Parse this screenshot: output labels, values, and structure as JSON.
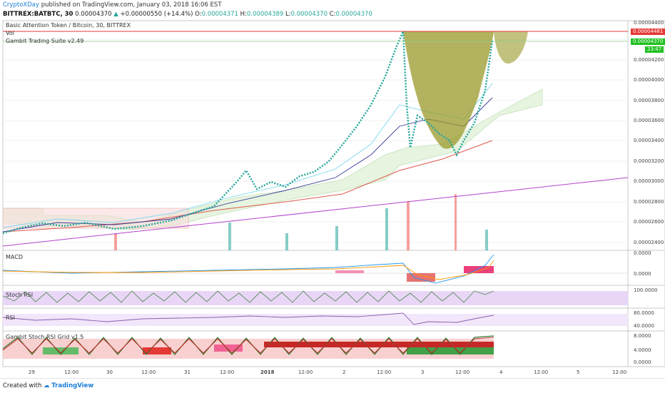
{
  "header": {
    "author": "CryptoXDay",
    "published_text": "published on TradingView.com, January 03, 2018 16:06 EST",
    "symbol": "BITTREX:BATBTC, 30",
    "last": "0.00004370",
    "change_arrow": "▲",
    "change": "+0.00000550 (+14.4%)",
    "ohlc": [
      {
        "key": "O:",
        "value": "0.00004371"
      },
      {
        "key": "H:",
        "value": "0.00004389"
      },
      {
        "key": "L:",
        "value": "0.00004370"
      },
      {
        "key": "C:",
        "value": "0.00004370"
      }
    ]
  },
  "main_pane": {
    "title": "Basic Attention Token / Bitcoin, 30, BITTREX",
    "vol_label": "Vol",
    "indicator_label": "Gambit Trading Suite v2.49",
    "price_ticks": [
      "0.00004400",
      "0.00004200",
      "0.00004000",
      "0.00003800",
      "0.00003600",
      "0.00003400",
      "0.00003200",
      "0.00003000",
      "0.00002800",
      "0.00002600",
      "0.00002400"
    ],
    "tag_red": "0.00004481",
    "tag_green": "0.00004370",
    "tag_time": "23:47"
  },
  "macd_pane": {
    "label": "MACD",
    "ticks": [
      "0.0000",
      "0.0000"
    ]
  },
  "stoch_pane": {
    "label": "Stoch RSI",
    "ticks": [
      "100.0000"
    ]
  },
  "rsi_pane": {
    "label": "RSI",
    "ticks": [
      "80.0000",
      "40.0000"
    ]
  },
  "grid_pane": {
    "label": "Gambit Stoch RSI Grid v1.5",
    "ticks": [
      "8.0000",
      "4.0000",
      "0.0000"
    ]
  },
  "time_axis": [
    "29",
    "12:00",
    "30",
    "12:00",
    "31",
    "12:00",
    "2018",
    "12:00",
    "2",
    "12:00",
    "3",
    "12:00",
    "4",
    "12:00",
    "5",
    "12:00"
  ],
  "footer": {
    "created_with": "Created with",
    "brand": "TradingView"
  },
  "colors": {
    "up": "#26a69a",
    "down": "#ef5350",
    "macd": "#2196f3",
    "signal": "#ff9800",
    "trend": "#b542ce",
    "cup": "#9a9a2a"
  }
}
